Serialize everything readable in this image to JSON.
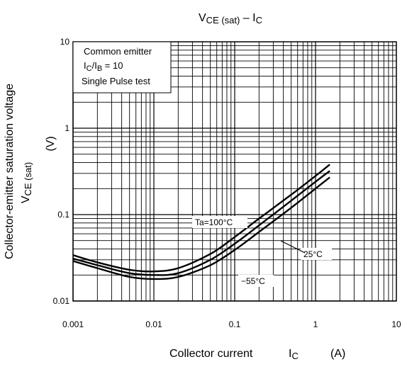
{
  "chart_data": {
    "type": "line",
    "title": {
      "main": "V",
      "main_sub": "CE (sat)",
      "sep": " – ",
      "rhs": "I",
      "rhs_sub": "C"
    },
    "xlabel": {
      "text": "Collector current",
      "symbol": "I",
      "symbol_sub": "C",
      "unit": "(A)"
    },
    "ylabel": {
      "line1": "Collector-emitter saturation voltage",
      "sym": "V",
      "sym_sub": "CE (sat)",
      "unit": "(V)"
    },
    "x_scale": "log",
    "y_scale": "log",
    "xlim": [
      0.001,
      10
    ],
    "ylim": [
      0.01,
      10
    ],
    "x_tick_labels": [
      "0.001",
      "0.01",
      "0.1",
      "1",
      "10"
    ],
    "y_tick_labels": [
      "0.01",
      "0.1",
      "1",
      "10"
    ],
    "grid": true,
    "conditions": {
      "line1": "Common emitter",
      "line2_a": "I",
      "line2_a_sub": "C",
      "line2_b": "/I",
      "line2_b_sub": "B",
      "line2_c": " = 10",
      "line3": "Single Pulse test"
    },
    "series": [
      {
        "name": "Ta=100°C",
        "x": [
          0.001,
          0.002,
          0.005,
          0.01,
          0.02,
          0.05,
          0.1,
          0.2,
          0.5,
          1.0,
          1.5
        ],
        "y": [
          0.034,
          0.028,
          0.023,
          0.022,
          0.024,
          0.035,
          0.055,
          0.09,
          0.17,
          0.28,
          0.38
        ]
      },
      {
        "name": "25°C",
        "x": [
          0.001,
          0.002,
          0.005,
          0.01,
          0.02,
          0.05,
          0.1,
          0.2,
          0.5,
          1.0,
          1.5
        ],
        "y": [
          0.031,
          0.026,
          0.021,
          0.02,
          0.021,
          0.03,
          0.046,
          0.075,
          0.145,
          0.24,
          0.32
        ]
      },
      {
        "name": "−55°C",
        "x": [
          0.001,
          0.002,
          0.005,
          0.01,
          0.02,
          0.05,
          0.1,
          0.2,
          0.5,
          1.0,
          1.5
        ],
        "y": [
          0.029,
          0.024,
          0.019,
          0.018,
          0.019,
          0.026,
          0.039,
          0.063,
          0.12,
          0.2,
          0.27
        ]
      }
    ]
  }
}
